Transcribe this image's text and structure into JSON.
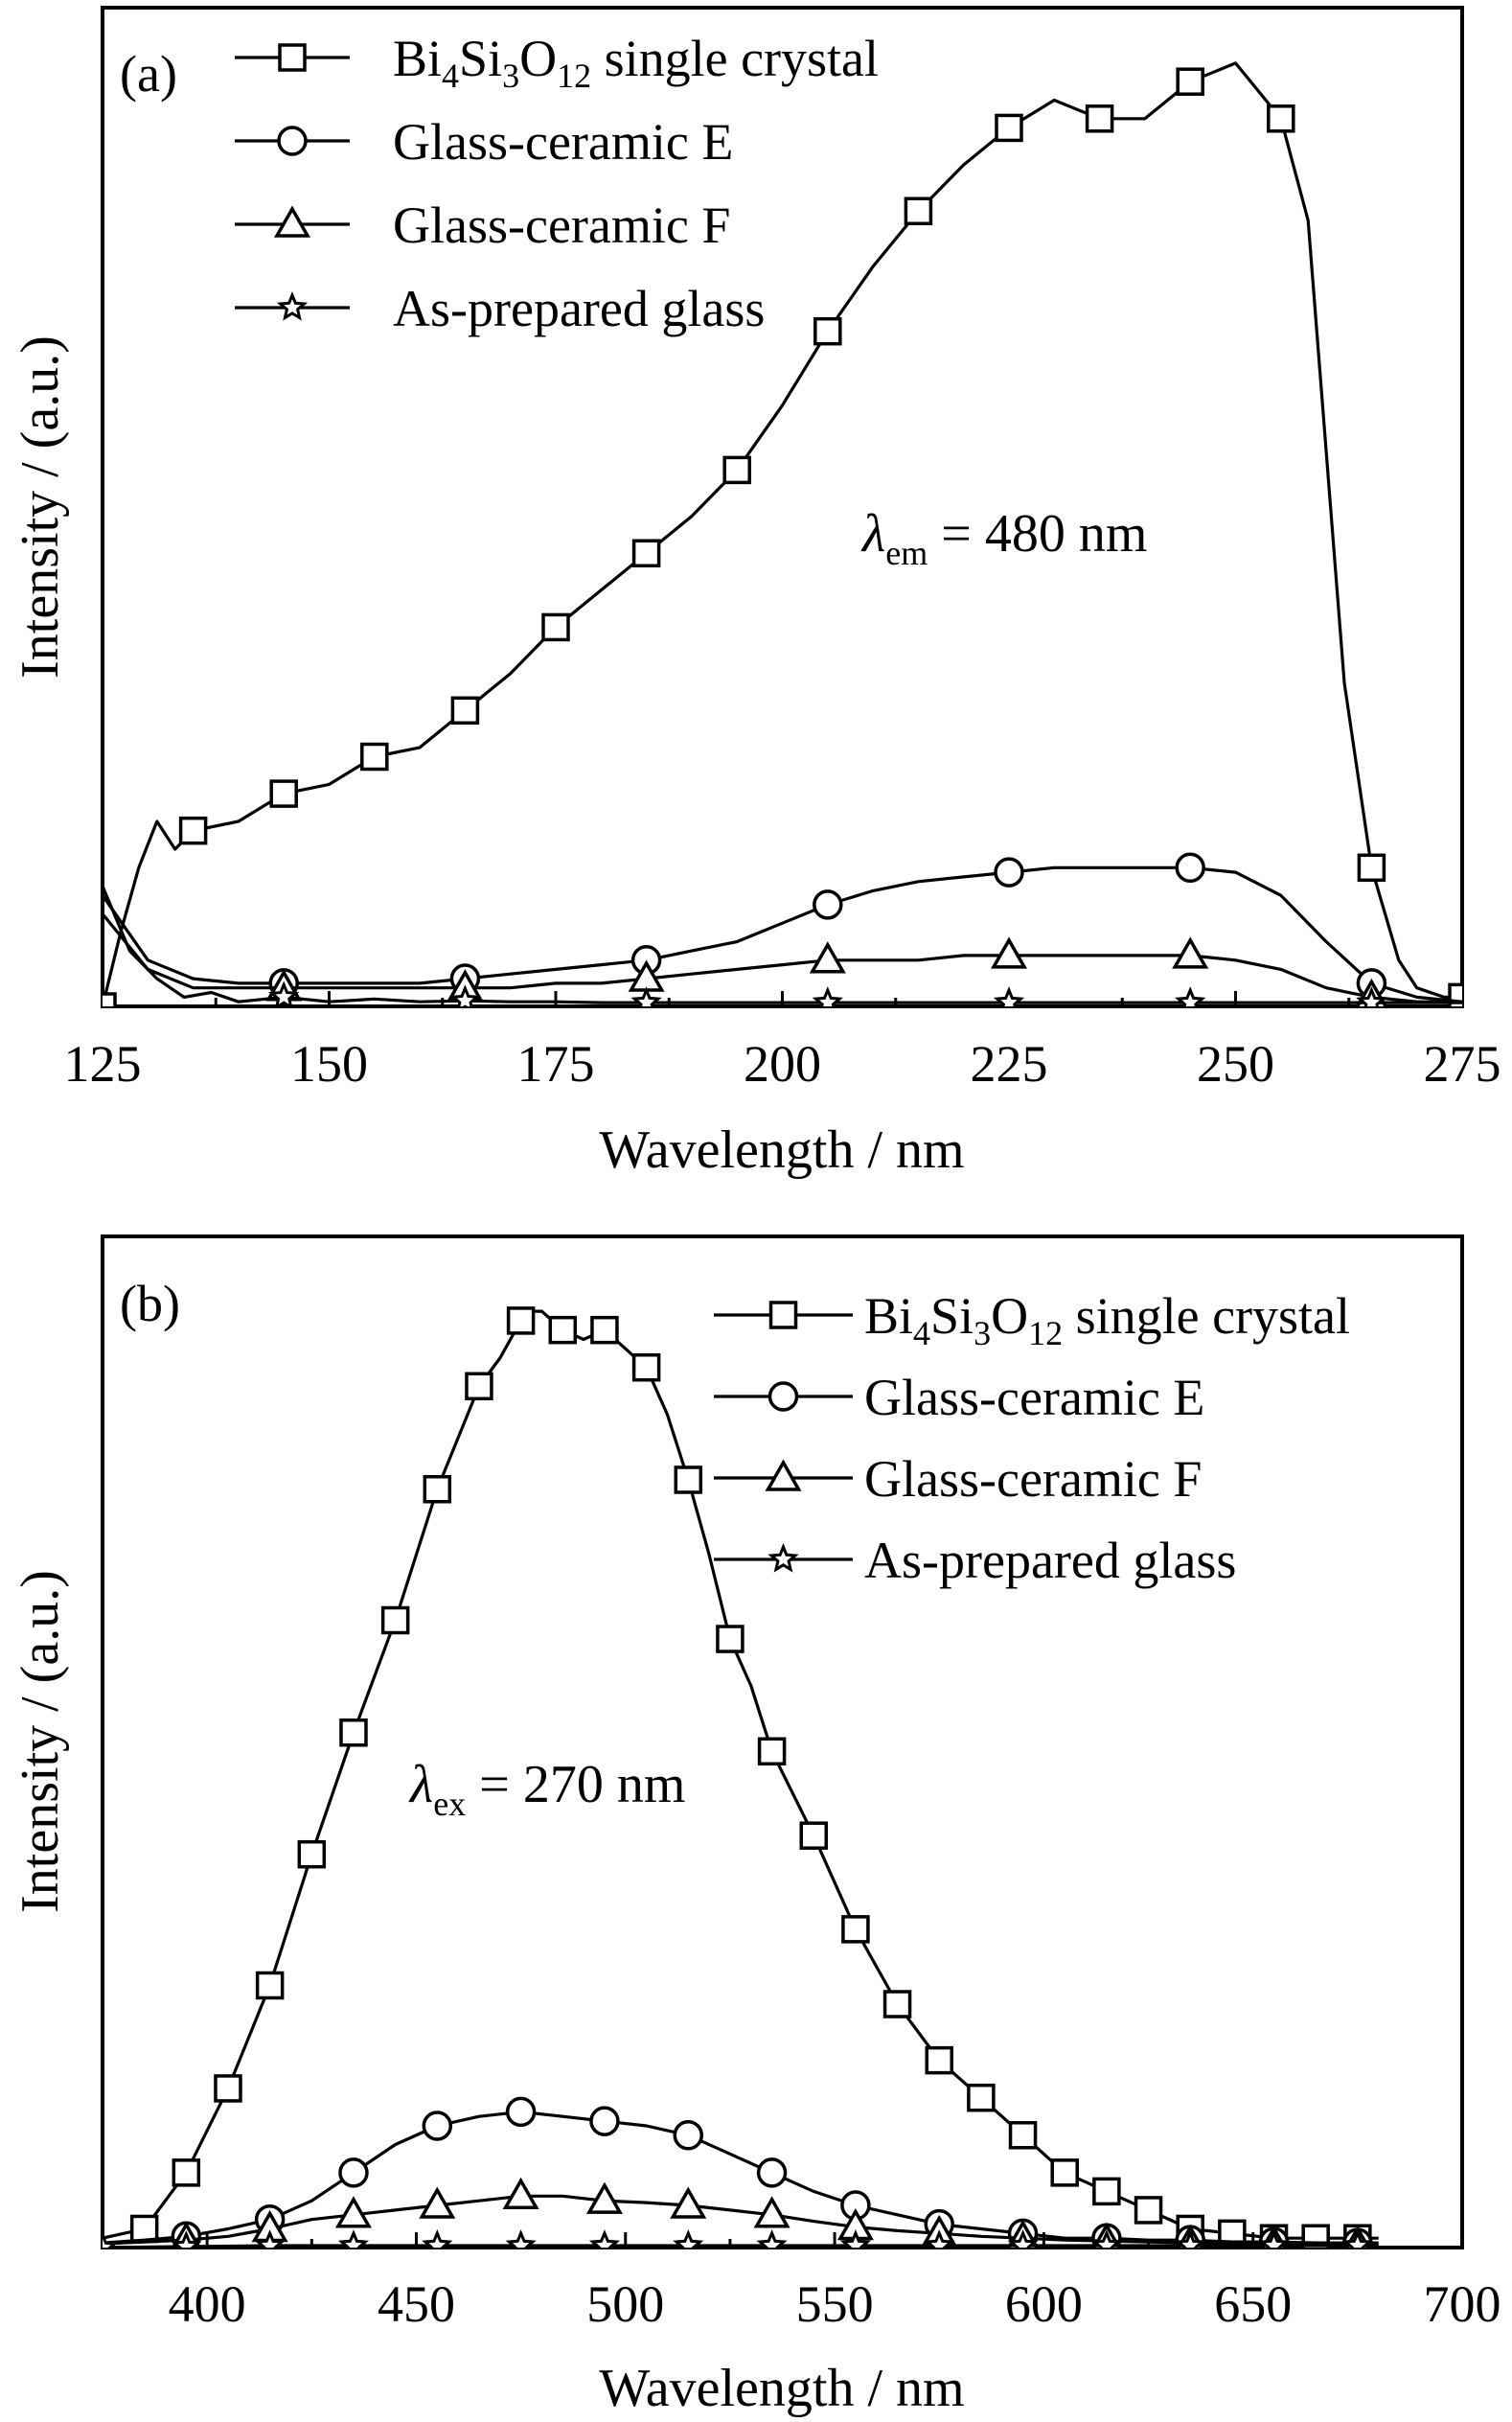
{
  "chart_data": [
    {
      "type": "line",
      "panel_label": "(a)",
      "xlabel": "Wavelength / nm",
      "ylabel": "Intensity / (a.u.)",
      "xlim": [
        125,
        275
      ],
      "ylim": [
        0,
        1.08
      ],
      "xticks": [
        "125",
        "150",
        "175",
        "200",
        "225",
        "250",
        "275"
      ],
      "annotation": {
        "symbol": "λ",
        "sub": "em",
        "text": " = 480 nm"
      },
      "legend_position": "top-left",
      "series": [
        {
          "name": "Bi4Si3O12 single crystal",
          "marker": "square",
          "x": [
            125,
            127,
            129,
            131,
            133,
            135,
            140,
            145,
            150,
            155,
            160,
            165,
            170,
            175,
            180,
            185,
            190,
            195,
            200,
            205,
            210,
            215,
            220,
            225,
            230,
            235,
            240,
            245,
            250,
            255,
            258,
            260,
            262,
            265,
            268,
            270,
            273,
            275
          ],
          "y": [
            0.0,
            0.08,
            0.15,
            0.2,
            0.17,
            0.19,
            0.2,
            0.23,
            0.24,
            0.27,
            0.28,
            0.32,
            0.36,
            0.41,
            0.45,
            0.49,
            0.53,
            0.58,
            0.65,
            0.73,
            0.8,
            0.86,
            0.91,
            0.95,
            0.98,
            0.96,
            0.96,
            1.0,
            1.02,
            0.96,
            0.85,
            0.6,
            0.35,
            0.15,
            0.05,
            0.02,
            0.01,
            0.01
          ]
        },
        {
          "name": "Glass-ceramic E",
          "marker": "circle",
          "x": [
            125,
            130,
            135,
            140,
            145,
            150,
            155,
            160,
            165,
            170,
            175,
            180,
            185,
            190,
            195,
            200,
            205,
            210,
            215,
            220,
            225,
            230,
            235,
            240,
            245,
            250,
            255,
            260,
            265,
            270,
            275
          ],
          "y": [
            0.12,
            0.05,
            0.03,
            0.025,
            0.025,
            0.025,
            0.025,
            0.025,
            0.03,
            0.035,
            0.04,
            0.045,
            0.05,
            0.06,
            0.07,
            0.09,
            0.11,
            0.125,
            0.135,
            0.14,
            0.145,
            0.15,
            0.15,
            0.15,
            0.15,
            0.145,
            0.12,
            0.07,
            0.025,
            0.01,
            0.005
          ]
        },
        {
          "name": "Glass-ceramic F",
          "marker": "triangle",
          "x": [
            125,
            130,
            135,
            140,
            145,
            150,
            155,
            160,
            165,
            170,
            175,
            180,
            185,
            190,
            195,
            200,
            205,
            210,
            215,
            220,
            225,
            230,
            235,
            240,
            245,
            250,
            255,
            260,
            265,
            270,
            275
          ],
          "y": [
            0.1,
            0.04,
            0.02,
            0.02,
            0.02,
            0.02,
            0.02,
            0.02,
            0.02,
            0.02,
            0.025,
            0.025,
            0.03,
            0.035,
            0.04,
            0.045,
            0.05,
            0.05,
            0.05,
            0.055,
            0.055,
            0.055,
            0.055,
            0.055,
            0.055,
            0.05,
            0.04,
            0.02,
            0.01,
            0.005,
            0.005
          ]
        },
        {
          "name": "As-prepared glass",
          "marker": "star",
          "x": [
            125,
            128,
            131,
            134,
            137,
            140,
            145,
            150,
            155,
            160,
            165,
            170,
            175,
            180,
            185,
            190,
            195,
            200,
            205,
            210,
            215,
            220,
            225,
            230,
            235,
            240,
            245,
            250,
            255,
            260,
            265,
            270,
            275
          ],
          "y": [
            0.13,
            0.06,
            0.03,
            0.01,
            0.015,
            0.005,
            0.01,
            0.005,
            0.008,
            0.005,
            0.006,
            0.005,
            0.005,
            0.004,
            0.004,
            0.004,
            0.004,
            0.004,
            0.004,
            0.004,
            0.004,
            0.004,
            0.004,
            0.004,
            0.004,
            0.004,
            0.004,
            0.004,
            0.004,
            0.004,
            0.004,
            0.004,
            0.004
          ]
        }
      ]
    },
    {
      "type": "line",
      "panel_label": "(b)",
      "xlabel": "Wavelength / nm",
      "ylabel": "Intensity / (a.u.)",
      "xlim": [
        375,
        700
      ],
      "ylim": [
        0,
        1.08
      ],
      "xticks": [
        "400",
        "450",
        "500",
        "550",
        "600",
        "650",
        "700"
      ],
      "annotation": {
        "symbol": "λ",
        "sub": "ex",
        "text": " = 270 nm"
      },
      "legend_position": "top-right",
      "series": [
        {
          "name": "Bi4Si3O12 single crystal",
          "marker": "square",
          "x": [
            375,
            385,
            395,
            405,
            415,
            425,
            435,
            445,
            455,
            465,
            470,
            475,
            478,
            480,
            485,
            490,
            495,
            500,
            505,
            510,
            515,
            520,
            525,
            530,
            535,
            545,
            555,
            565,
            575,
            585,
            595,
            605,
            615,
            625,
            635,
            645,
            655,
            665,
            675,
            680
          ],
          "y": [
            0.01,
            0.02,
            0.08,
            0.17,
            0.28,
            0.42,
            0.55,
            0.67,
            0.81,
            0.92,
            0.95,
            0.99,
            1.0,
            1.0,
            0.98,
            0.97,
            0.98,
            0.96,
            0.94,
            0.89,
            0.82,
            0.74,
            0.65,
            0.6,
            0.53,
            0.44,
            0.34,
            0.26,
            0.2,
            0.16,
            0.12,
            0.08,
            0.06,
            0.04,
            0.02,
            0.015,
            0.01,
            0.01,
            0.01,
            0.01
          ]
        },
        {
          "name": "Glass-ceramic E",
          "marker": "circle",
          "x": [
            375,
            385,
            395,
            405,
            415,
            425,
            435,
            445,
            455,
            465,
            475,
            485,
            495,
            505,
            515,
            525,
            535,
            545,
            555,
            565,
            575,
            585,
            595,
            605,
            615,
            625,
            635,
            645,
            655,
            665,
            675,
            680
          ],
          "y": [
            0.005,
            0.008,
            0.012,
            0.02,
            0.03,
            0.05,
            0.08,
            0.11,
            0.13,
            0.14,
            0.145,
            0.14,
            0.135,
            0.13,
            0.12,
            0.1,
            0.08,
            0.06,
            0.045,
            0.035,
            0.025,
            0.02,
            0.015,
            0.01,
            0.01,
            0.008,
            0.008,
            0.006,
            0.006,
            0.005,
            0.005,
            0.005
          ]
        },
        {
          "name": "Glass-ceramic F",
          "marker": "triangle",
          "x": [
            375,
            385,
            395,
            405,
            415,
            425,
            435,
            445,
            455,
            465,
            475,
            485,
            495,
            505,
            515,
            525,
            535,
            545,
            555,
            565,
            575,
            585,
            595,
            605,
            615,
            625,
            635,
            645,
            655,
            665,
            675,
            680
          ],
          "y": [
            0.004,
            0.006,
            0.008,
            0.012,
            0.02,
            0.03,
            0.035,
            0.04,
            0.045,
            0.05,
            0.055,
            0.055,
            0.05,
            0.048,
            0.045,
            0.04,
            0.035,
            0.028,
            0.022,
            0.018,
            0.015,
            0.012,
            0.01,
            0.008,
            0.007,
            0.006,
            0.005,
            0.005,
            0.004,
            0.004,
            0.004,
            0.004
          ]
        },
        {
          "name": "As-prepared glass",
          "marker": "star",
          "x": [
            375,
            395,
            415,
            435,
            455,
            475,
            495,
            515,
            535,
            555,
            575,
            595,
            615,
            635,
            655,
            675,
            680
          ],
          "y": [
            0.0,
            0.001,
            0.002,
            0.002,
            0.002,
            0.002,
            0.002,
            0.002,
            0.002,
            0.002,
            0.002,
            0.002,
            0.002,
            0.002,
            0.002,
            0.002,
            0.002
          ]
        }
      ]
    }
  ]
}
